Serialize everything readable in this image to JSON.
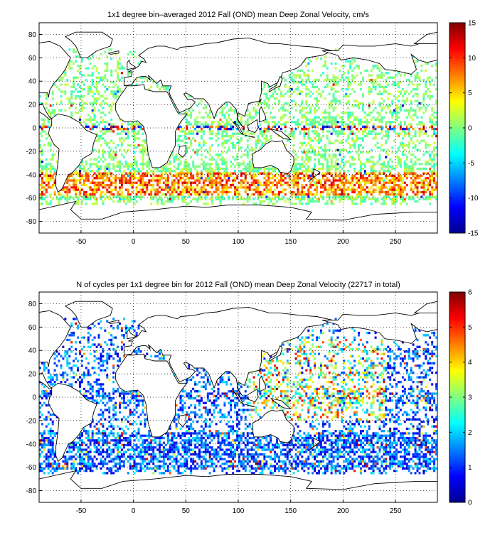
{
  "chart_data": [
    {
      "type": "heatmap",
      "title": "1x1 degree bin–averaged 2012 Fall (OND) mean Deep Zonal Velocity, cm/s",
      "xlim": [
        -90,
        290
      ],
      "ylim": [
        -90,
        90
      ],
      "xticks": [
        -50,
        0,
        50,
        100,
        150,
        200,
        250
      ],
      "yticks": [
        -80,
        -60,
        -40,
        -20,
        0,
        20,
        40,
        60,
        80
      ],
      "grid": true,
      "colorbar": {
        "min": -15,
        "max": 15,
        "ticks": [
          15,
          10,
          5,
          0,
          -5,
          -10,
          -15
        ],
        "colormap": "jet",
        "placement": "right"
      }
    },
    {
      "type": "heatmap",
      "title": "N of cycles per 1x1 degree bin for 2012 Fall (OND) mean Deep Zonal Velocity (22717 in total)",
      "xlim": [
        -90,
        290
      ],
      "ylim": [
        -90,
        90
      ],
      "xticks": [
        -50,
        0,
        50,
        100,
        150,
        200,
        250
      ],
      "yticks": [
        -80,
        -60,
        -40,
        -20,
        0,
        20,
        40,
        60,
        80
      ],
      "grid": true,
      "colorbar": {
        "min": 0,
        "max": 6,
        "ticks": [
          6,
          5,
          4,
          3,
          2,
          1,
          0
        ],
        "colormap": "jet",
        "placement": "right"
      }
    }
  ]
}
